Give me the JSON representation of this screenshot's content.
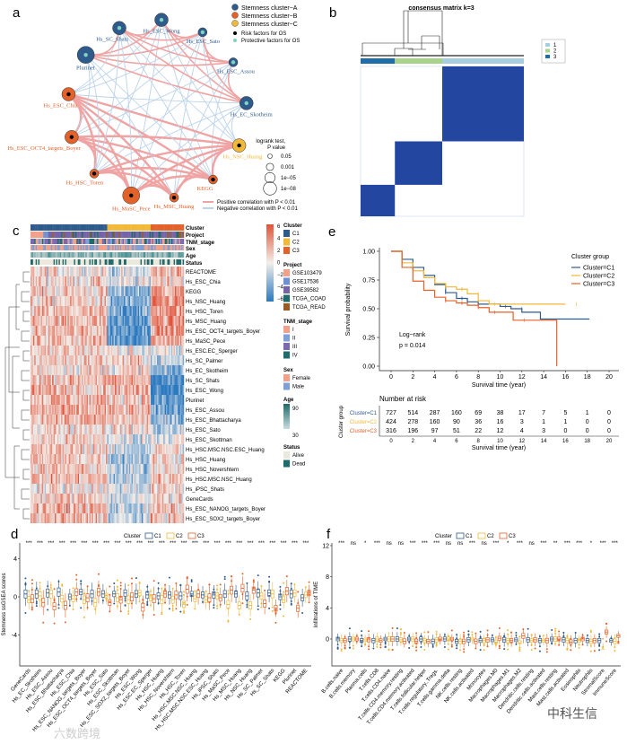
{
  "panels": {
    "a": "a",
    "b": "b",
    "c": "c",
    "d": "d",
    "e": "e",
    "f": "f"
  },
  "colors": {
    "c1": "#2f5b8c",
    "c2": "#f1b93a",
    "c3": "#e2622a",
    "heat_high": "#e0523a",
    "heat_low": "#2a78c0",
    "heat_mid": "#f3efea",
    "pos_edge": "#f0a3a3",
    "neg_edge": "#bcd3ea",
    "consensus": "#2347a0"
  },
  "chart_data": [
    {
      "type": "network",
      "legend": {
        "clusters": [
          "Stemness cluster−A",
          "Stemness cluster−B",
          "Stemness cluster−C"
        ],
        "risk": [
          "Risk factors for OS",
          "Protective factors for OS"
        ],
        "size_title": [
          "logrank test,",
          "P value"
        ],
        "size_levels": [
          "0.05",
          "0.001",
          "1e−05",
          "1e−08"
        ],
        "edges": [
          "Positive correlation with P < 0.01",
          "Negative correlation with P < 0.01"
        ]
      },
      "nodes": [
        {
          "name": "Hs_ESC_Wong",
          "cluster": "A",
          "factor": "protective",
          "p_level": 2
        },
        {
          "name": "Hs_ESC_Sato",
          "cluster": "A",
          "factor": "protective",
          "p_level": 1
        },
        {
          "name": "Hs_ESC_Assou",
          "cluster": "A",
          "factor": "protective",
          "p_level": 1
        },
        {
          "name": "Hs_EC_Skotheim",
          "cluster": "A",
          "factor": "protective",
          "p_level": 2
        },
        {
          "name": "Hs_NSC_Huang",
          "cluster": "C",
          "factor": "risk",
          "p_level": 2
        },
        {
          "name": "KEGG",
          "cluster": "B",
          "factor": "risk",
          "p_level": 1
        },
        {
          "name": "Hs_MSC_Huang",
          "cluster": "B",
          "factor": "risk",
          "p_level": 1
        },
        {
          "name": "Hs_MaSC_Pece",
          "cluster": "B",
          "factor": "risk",
          "p_level": 3
        },
        {
          "name": "Hs_HSC_Toren",
          "cluster": "B",
          "factor": "risk",
          "p_level": 1
        },
        {
          "name": "Hs_ESC_OCT4_targets_Boyer",
          "cluster": "B",
          "factor": "risk",
          "p_level": 2
        },
        {
          "name": "Hs_ESC_Chia",
          "cluster": "B",
          "factor": "risk",
          "p_level": 2
        },
        {
          "name": "Plurinet",
          "cluster": "A",
          "factor": "protective",
          "p_level": 3
        },
        {
          "name": "Hs_SC_Shats",
          "cluster": "A",
          "factor": "protective",
          "p_level": 2
        }
      ]
    },
    {
      "type": "heatmap",
      "title": "consensus matrix k=3",
      "legend": [
        "1",
        "2",
        "3"
      ],
      "cluster_fractions": {
        "3": 0.21,
        "2": 0.29,
        "1": 0.5
      }
    },
    {
      "type": "heatmap",
      "annotations": [
        "Cluster",
        "Project",
        "TNM_stage",
        "Sex",
        "Age",
        "Status"
      ],
      "scale_ticks": [
        "6",
        "4",
        "2",
        "0",
        "−2",
        "−4",
        "−6"
      ],
      "legend": {
        "cluster": {
          "title": "Cluster",
          "items": [
            "C1",
            "C2",
            "C3"
          ]
        },
        "project": {
          "title": "Project",
          "items": [
            "GSE103479",
            "GSE17536",
            "GSE39582",
            "TCGA_COAD",
            "TCGA_READ"
          ],
          "colors": [
            "#f2a08a",
            "#6f8fd0",
            "#7563a8",
            "#1f6a6a",
            "#9a5a22"
          ]
        },
        "tnm": {
          "title": "TNM_stage",
          "items": [
            "I",
            "II",
            "III",
            "IV"
          ],
          "colors": [
            "#f2a08a",
            "#7f9fd8",
            "#7a68b0",
            "#1f6a6a"
          ]
        },
        "sex": {
          "title": "Sex",
          "items": [
            "Female",
            "Male"
          ],
          "colors": [
            "#f2a08a",
            "#7f9fd8"
          ]
        },
        "age": {
          "title": "Age",
          "max": "90",
          "min": "30"
        },
        "status": {
          "title": "Status",
          "items": [
            "Alive",
            "Dead"
          ],
          "colors": [
            "#ebe8dc",
            "#1f6a6a"
          ]
        }
      },
      "cluster_columns": {
        "C1": 60,
        "C2": 34,
        "C3": 26
      },
      "rows": [
        {
          "name": "REACTOME",
          "means": [
            0.2,
            -0.3,
            0.6
          ]
        },
        {
          "name": "Hs_ESC_Chia",
          "means": [
            0.3,
            -0.2,
            0.5
          ]
        },
        {
          "name": "KEGG",
          "means": [
            0.3,
            -0.8,
            0.8
          ]
        },
        {
          "name": "Hs_NSC_Huang",
          "means": [
            0.3,
            -1.0,
            0.9
          ]
        },
        {
          "name": "Hs_HSC_Toren",
          "means": [
            0.4,
            -1.0,
            0.9
          ]
        },
        {
          "name": "Hs_MSC_Huang",
          "means": [
            0.6,
            -1.2,
            0.9
          ]
        },
        {
          "name": "Hs_ESC_OCT4_targets_Boyer",
          "means": [
            0.5,
            -1.1,
            0.9
          ]
        },
        {
          "name": "Hs_MaSC_Pece",
          "means": [
            0.5,
            -1.1,
            0.8
          ]
        },
        {
          "name": "Hs_ESC.EC_Sperger",
          "means": [
            0.3,
            0.0,
            -0.2
          ]
        },
        {
          "name": "Hs_SC_Palmer",
          "means": [
            0.4,
            0.3,
            -0.4
          ]
        },
        {
          "name": "Hs_EC_Skotheim",
          "means": [
            0.3,
            0.2,
            -1.0
          ]
        },
        {
          "name": "Hs_SC_Shats",
          "means": [
            0.6,
            0.6,
            -1.3
          ]
        },
        {
          "name": "Hs_ESC_Wong",
          "means": [
            0.6,
            0.6,
            -1.3
          ]
        },
        {
          "name": "Plurinet",
          "means": [
            0.6,
            0.5,
            -1.2
          ]
        },
        {
          "name": "Hs_ESC_Assou",
          "means": [
            0.6,
            0.5,
            -1.1
          ]
        },
        {
          "name": "Hs_ESC_Bhattacharya",
          "means": [
            0.6,
            0.4,
            -0.8
          ]
        },
        {
          "name": "Hs_ESC_Sato",
          "means": [
            0.3,
            0.2,
            -0.5
          ]
        },
        {
          "name": "Hs_ESC_Skottman",
          "means": [
            0.3,
            -0.2,
            0.0
          ]
        },
        {
          "name": "Hs_HSC.MSC.NSC.ESC_Huang",
          "means": [
            0.4,
            -0.4,
            0.2
          ]
        },
        {
          "name": "Hs_HSC_Huang",
          "means": [
            0.4,
            -0.5,
            0.3
          ]
        },
        {
          "name": "Hs_HSC_Novershtern",
          "means": [
            0.4,
            -0.6,
            0.4
          ]
        },
        {
          "name": "Hs_HSC.MSC.NSC_Huang",
          "means": [
            0.5,
            -0.5,
            0.5
          ]
        },
        {
          "name": "Hs_iPSC_Shats",
          "means": [
            0.2,
            -0.2,
            0.2
          ]
        },
        {
          "name": "GeneCards",
          "means": [
            0.4,
            -0.3,
            0.3
          ]
        },
        {
          "name": "Hs_ESC_NANOG_targets_Boyer",
          "means": [
            0.6,
            -0.4,
            0.4
          ]
        },
        {
          "name": "Hs_ESC_SOX2_targets_Boyer",
          "means": [
            0.5,
            -0.4,
            0.4
          ]
        }
      ]
    },
    {
      "type": "box",
      "ylabel": "Stemness ssGSEA scores",
      "legend_title": "Cluster",
      "series_names": [
        "C1",
        "C2",
        "C3"
      ],
      "yticks": [
        4,
        0,
        -4
      ],
      "ylim": [
        -7.5,
        6
      ],
      "categories": [
        "GeneCards",
        "Hs_EC_Skotheim",
        "Hs_ESC_Assou",
        "Hs_ESC_Bhattacharya",
        "Hs_ESC_Chia",
        "Hs_ESC_NANOG_targets_Boyer",
        "Hs_ESC_OCT4_targets_Boyer",
        "Hs_ESC_Sato",
        "Hs_ESC_Skottman",
        "Hs_ESC_SOX2_targets_Boyer",
        "Hs_ESC_Wong",
        "Hs_ESC.EC_Sperger",
        "Hs_HSC_Huang",
        "Hs_HSC_Novershtern",
        "Hs_HSC_Toren",
        "Hs_HSC.MSC.NSC_Huang",
        "Hs_HSC.MSC.NSC.ESC_Huang",
        "Hs_iPSC_Shats",
        "Hs_MaSC_Pece",
        "Hs_MSC_Huang",
        "Hs_NSC_Huang",
        "Hs_SC_Palmer",
        "Hs_SC_Shats",
        "KEGG",
        "Plurinet",
        "REACTOME"
      ],
      "significance": [
        "***",
        "***",
        "***",
        "***",
        "***",
        "***",
        "***",
        "***",
        "***",
        "***",
        "***",
        "***",
        "***",
        "***",
        "***",
        "***",
        "***",
        "***",
        "***",
        "***",
        "***",
        "***",
        "***",
        "***",
        "***",
        "***"
      ],
      "medians": [
        [
          0.3,
          -0.3,
          -0.2
        ],
        [
          0.3,
          0.1,
          -0.6
        ],
        [
          0.4,
          0.3,
          -1.0
        ],
        [
          0.5,
          -0.2,
          -0.9
        ],
        [
          0.0,
          -0.2,
          0.5
        ],
        [
          0.5,
          -0.3,
          -0.1
        ],
        [
          0.3,
          -0.6,
          0.5
        ],
        [
          0.3,
          0.1,
          -0.6
        ],
        [
          0.3,
          -0.1,
          -0.3
        ],
        [
          0.4,
          -0.3,
          0.0
        ],
        [
          0.3,
          0.4,
          -1.1
        ],
        [
          0.2,
          -0.1,
          -0.2
        ],
        [
          0.1,
          -0.3,
          0.3
        ],
        [
          0.2,
          -0.3,
          0.2
        ],
        [
          0.1,
          -0.8,
          0.8
        ],
        [
          0.3,
          -0.2,
          0.3
        ],
        [
          0.2,
          -0.3,
          -0.1
        ],
        [
          0.2,
          0.1,
          -0.1
        ],
        [
          0.3,
          -0.8,
          0.7
        ],
        [
          0.3,
          -0.9,
          0.9
        ],
        [
          0.1,
          -0.9,
          0.7
        ],
        [
          0.4,
          0.1,
          -0.7
        ],
        [
          0.4,
          0.3,
          -1.2
        ],
        [
          0.0,
          -0.3,
          0.6
        ],
        [
          0.3,
          0.4,
          -1.2
        ],
        [
          -0.1,
          0.2,
          0.4
        ]
      ]
    },
    {
      "type": "line",
      "subtype": "kaplan-meier",
      "xlabel": "Survival time (year)",
      "ylabel": "Survival probability",
      "legend_title": "Cluster group",
      "annotation": [
        "Log−rank",
        "p = 0.014"
      ],
      "xticks": [
        0,
        2,
        4,
        6,
        8,
        10,
        12,
        14,
        16,
        18,
        20
      ],
      "yticks": [
        "1.00",
        "0.75",
        "0.50",
        "0.25",
        "0.00"
      ],
      "xlim": [
        0,
        20
      ],
      "ylim": [
        0,
        1
      ],
      "series": [
        {
          "name": "Cluster=C1",
          "points": [
            [
              0,
              1
            ],
            [
              1,
              0.93
            ],
            [
              2,
              0.86
            ],
            [
              3,
              0.79
            ],
            [
              4,
              0.71
            ],
            [
              5,
              0.64
            ],
            [
              6,
              0.59
            ],
            [
              7,
              0.56
            ],
            [
              8,
              0.54
            ],
            [
              10,
              0.52
            ],
            [
              11,
              0.5
            ],
            [
              12,
              0.47
            ],
            [
              13.7,
              0.41
            ],
            [
              18.2,
              0.41
            ]
          ]
        },
        {
          "name": "Cluster=C2",
          "points": [
            [
              0,
              1
            ],
            [
              1,
              0.9
            ],
            [
              2,
              0.83
            ],
            [
              3,
              0.77
            ],
            [
              4,
              0.72
            ],
            [
              5,
              0.69
            ],
            [
              6,
              0.67
            ],
            [
              7,
              0.63
            ],
            [
              8,
              0.57
            ],
            [
              9,
              0.54
            ],
            [
              16,
              0.54
            ]
          ]
        },
        {
          "name": "Cluster=C3",
          "points": [
            [
              0,
              1
            ],
            [
              1,
              0.86
            ],
            [
              2,
              0.74
            ],
            [
              3,
              0.66
            ],
            [
              4,
              0.6
            ],
            [
              5,
              0.57
            ],
            [
              6,
              0.55
            ],
            [
              7,
              0.53
            ],
            [
              8,
              0.51
            ],
            [
              9,
              0.47
            ],
            [
              11.2,
              0.4
            ],
            [
              15.2,
              0.4
            ],
            [
              15.2,
              0
            ]
          ]
        }
      ],
      "risk_table": {
        "title": "Number at risk",
        "ylabel": "Cluster group",
        "xlabel": "Survival time (year)",
        "rows": [
          {
            "name": "Cluster=C1",
            "values": [
              727,
              514,
              287,
              160,
              69,
              38,
              17,
              7,
              5,
              1,
              0
            ]
          },
          {
            "name": "Cluster=C2",
            "values": [
              424,
              278,
              160,
              90,
              36,
              16,
              3,
              1,
              1,
              0,
              0
            ]
          },
          {
            "name": "Cluster=C3",
            "values": [
              316,
              196,
              97,
              51,
              22,
              12,
              4,
              3,
              0,
              0,
              0
            ]
          }
        ]
      }
    },
    {
      "type": "box",
      "ylabel": "Infiltrations of TIME",
      "legend_title": "Cluster",
      "series_names": [
        "C1",
        "C2",
        "C3"
      ],
      "yticks": [
        12,
        8,
        4,
        0
      ],
      "ylim": [
        -3.5,
        12.5
      ],
      "categories": [
        "B.cells.naive",
        "B.cells.memory",
        "Plasma.cells",
        "T.cells.CD8",
        "T.cells.CD4.naive",
        "T.cells.CD4.memory.resting",
        "T.cells.CD4.memory.activated",
        "T.cells.follicular.helper",
        "T.cells.regulatory..Tregs.",
        "T.cells.gamma.delta",
        "NK.cells.resting",
        "NK.cells.activated",
        "Monocytes",
        "Macrophages.M0",
        "Macrophages.M1",
        "Macrophages.M2",
        "Dendritic.cells.resting",
        "Dendritic.cells.activated",
        "Mast.cells.resting",
        "Mast.cells.activated",
        "Eosinophils",
        "Neutrophils",
        "StromalScore",
        "ImmuneScore"
      ],
      "significance": [
        "***",
        "ns",
        "*",
        "***",
        "ns",
        "ns",
        "***",
        "***",
        "***",
        "ns",
        "ns",
        "***",
        "ns",
        "***",
        "*",
        "***",
        "ns",
        "***",
        "**",
        "***",
        "***",
        "*",
        "***",
        "***"
      ],
      "medians": [
        [
          0,
          -0.2,
          -0.2
        ],
        [
          0,
          0,
          0
        ],
        [
          -0.2,
          -0.1,
          -0.1
        ],
        [
          -0.2,
          0,
          -0.2
        ],
        [
          0,
          0,
          0
        ],
        [
          0,
          -0.1,
          -0.3
        ],
        [
          0,
          0,
          -0.3
        ],
        [
          0,
          -0.2,
          -0.3
        ],
        [
          -0.3,
          -0.1,
          0
        ],
        [
          0,
          0,
          0
        ],
        [
          -0.3,
          -0.3,
          -0.3
        ],
        [
          -0.1,
          0,
          -0.3
        ],
        [
          -0.2,
          -0.2,
          -0.1
        ],
        [
          -0.1,
          -0.4,
          0.1
        ],
        [
          -0.1,
          -0.2,
          -0.2
        ],
        [
          -0.1,
          -0.5,
          0.4
        ],
        [
          -0.1,
          -0.2,
          -0.1
        ],
        [
          -0.2,
          -0.2,
          -0.2
        ],
        [
          0,
          0,
          0
        ],
        [
          -0.1,
          -0.2,
          -0.4
        ],
        [
          -0.2,
          -0.2,
          0
        ],
        [
          -0.2,
          -0.3,
          -0.2
        ],
        [
          -0.2,
          -1.3,
          0.9
        ],
        [
          -0.2,
          -0.3,
          0.4
        ]
      ]
    }
  ],
  "watermarks": [
    "六数跨境",
    "中科生信"
  ]
}
